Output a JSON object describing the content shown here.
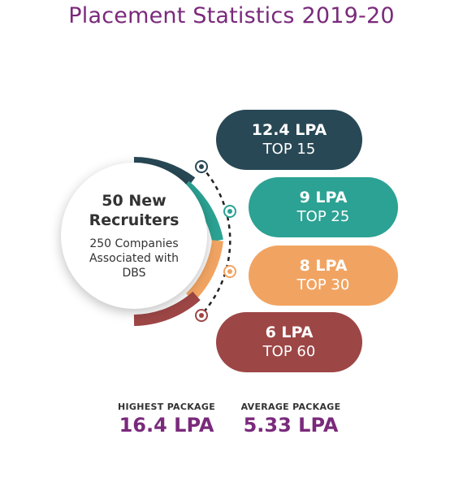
{
  "title": "Placement Statistics 2019-20",
  "center": {
    "headline": "50 New Recruiters",
    "subtext": "250 Companies Associated with DBS"
  },
  "tiers": [
    {
      "package": "12.4 LPA",
      "rank": "TOP 15",
      "color": "#284855"
    },
    {
      "package": "9 LPA",
      "rank": "TOP 25",
      "color": "#2ba293"
    },
    {
      "package": "8 LPA",
      "rank": "TOP 30",
      "color": "#f1a462"
    },
    {
      "package": "6 LPA",
      "rank": "TOP 60",
      "color": "#9d4646"
    }
  ],
  "stats": {
    "highest_label": "HIGHEST PACKAGE",
    "highest_value": "16.4 LPA",
    "average_label": "AVERAGE PACKAGE",
    "average_value": "5.33 LPA"
  }
}
